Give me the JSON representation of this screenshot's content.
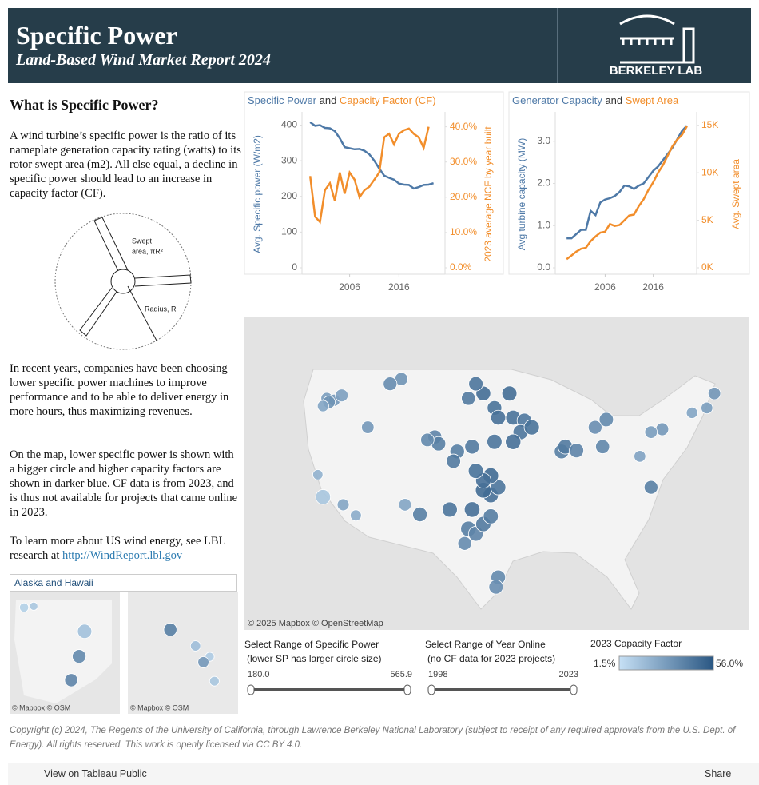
{
  "header": {
    "title": "Specific Power",
    "subtitle": "Land-Based Wind Market Report 2024",
    "logo": "BERKELEY LAB"
  },
  "sidebar": {
    "heading": "What is Specific Power?",
    "paragraphs": [
      "A wind turbine’s specific power is the ratio of its nameplate generation capacity rating (watts) to its rotor swept area (m2). All else equal, a decline in specific power should lead to an increase in capacity factor (CF).",
      "In recent years, companies have been choosing lower specific power machines to improve performance and to be able to deliver energy in more hours, thus maximizing revenues.",
      "On the map, lower specific power is shown with a bigger circle and higher capacity factors are shown in darker blue. CF data is from 2023, and is thus not available for projects that came online in 2023.",
      "To learn more about US wind energy, see LBL research at "
    ],
    "link": "http://WindReport.lbl.gov",
    "diagram": {
      "swept_1": "Swept",
      "swept_2": "area, πR²",
      "radius": "Radius, R"
    }
  },
  "chart_data": [
    {
      "type": "line",
      "title_joiner": "and",
      "y_label": "Avg. Specific power (W/m2)",
      "y2_label": "2023 average NCF by year built",
      "x": [
        1998,
        1999,
        2000,
        2001,
        2002,
        2003,
        2004,
        2005,
        2006,
        2007,
        2008,
        2009,
        2010,
        2011,
        2012,
        2013,
        2014,
        2015,
        2016,
        2017,
        2018,
        2019,
        2020,
        2021,
        2022,
        2023
      ],
      "xlim": [
        1997,
        2025
      ],
      "xticks": [
        2006,
        2016
      ],
      "ylim": [
        0,
        410
      ],
      "yticks": [
        0,
        100,
        200,
        300,
        400
      ],
      "y2lim": [
        0,
        41.5
      ],
      "y2ticks": [
        {
          "value": 0,
          "label": "0.0%"
        },
        {
          "value": 10,
          "label": "10.0%"
        },
        {
          "value": 20,
          "label": "20.0%"
        },
        {
          "value": 30,
          "label": "30.0%"
        },
        {
          "value": 40,
          "label": "40.0%"
        }
      ],
      "series": [
        {
          "name": "Specific Power",
          "color": "#4e79a7",
          "values": [
            408,
            398,
            400,
            392,
            391,
            383,
            363,
            338,
            335,
            332,
            333,
            328,
            318,
            300,
            278,
            258,
            252,
            247,
            236,
            233,
            232,
            222,
            226,
            232,
            233,
            237
          ]
        },
        {
          "name": "Capacity Factor (CF)",
          "color": "#f28e2b",
          "axis": "y2",
          "values": [
            26,
            14.5,
            13,
            22,
            24,
            19,
            27,
            21,
            27,
            25,
            20,
            22,
            23,
            25,
            27,
            37,
            38,
            35,
            38,
            39,
            39.5,
            38,
            37,
            34,
            40,
            null
          ]
        }
      ]
    },
    {
      "type": "line",
      "title_joiner": "and",
      "y_label": "Avg turbine capacity (MW)",
      "y2_label": "Avg. Swept area",
      "x": [
        1998,
        1999,
        2000,
        2001,
        2002,
        2003,
        2004,
        2005,
        2006,
        2007,
        2008,
        2009,
        2010,
        2011,
        2012,
        2013,
        2014,
        2015,
        2016,
        2017,
        2018,
        2019,
        2020,
        2021,
        2022,
        2023
      ],
      "xlim": [
        1996.3,
        2024.7
      ],
      "xticks": [
        2006,
        2016
      ],
      "ylim": [
        0,
        3.47
      ],
      "yticks": [
        {
          "value": 0,
          "label": "0.0"
        },
        {
          "value": 1,
          "label": "1.0"
        },
        {
          "value": 2,
          "label": "2.0"
        },
        {
          "value": 3,
          "label": "3.0"
        }
      ],
      "y2lim": [
        0,
        15400
      ],
      "y2ticks": [
        {
          "value": 0,
          "label": "0K"
        },
        {
          "value": 5000,
          "label": "5K"
        },
        {
          "value": 10000,
          "label": "10K"
        },
        {
          "value": 15000,
          "label": "15K"
        }
      ],
      "series": [
        {
          "name": "Generator Capacity",
          "color": "#4e79a7",
          "values": [
            0.7,
            0.7,
            0.8,
            0.9,
            0.9,
            1.35,
            1.25,
            1.55,
            1.62,
            1.65,
            1.7,
            1.8,
            1.95,
            1.93,
            1.87,
            1.95,
            2.0,
            2.15,
            2.3,
            2.4,
            2.55,
            2.7,
            2.85,
            3.05,
            3.25,
            3.37
          ]
        },
        {
          "name": "Swept Area",
          "color": "#f28e2b",
          "axis": "y2",
          "values": [
            900,
            1300,
            1700,
            2000,
            2100,
            2800,
            3300,
            3700,
            3800,
            4600,
            4400,
            4500,
            5000,
            5500,
            5600,
            6500,
            7200,
            8200,
            9000,
            10000,
            10800,
            11800,
            12800,
            13500,
            14000,
            14900
          ]
        }
      ]
    }
  ],
  "map": {
    "attribution": "© 2025 Mapbox  © OpenStreetMap",
    "points": [
      {
        "lon": -120.5,
        "lat": 46.0,
        "sp": 330,
        "cf": 28
      },
      {
        "lon": -119.5,
        "lat": 45.8,
        "sp": 320,
        "cf": 30
      },
      {
        "lon": -120.2,
        "lat": 45.6,
        "sp": 300,
        "cf": 32
      },
      {
        "lon": -118.5,
        "lat": 46.3,
        "sp": 290,
        "cf": 27
      },
      {
        "lon": -121.0,
        "lat": 45.2,
        "sp": 340,
        "cf": 25
      },
      {
        "lon": -121.7,
        "lat": 38.1,
        "sp": 380,
        "cf": 20
      },
      {
        "lon": -118.3,
        "lat": 35.0,
        "sp": 320,
        "cf": 25
      },
      {
        "lon": -116.6,
        "lat": 33.9,
        "sp": 350,
        "cf": 22
      },
      {
        "lon": -121.0,
        "lat": 35.8,
        "sp": 220,
        "cf": 12
      },
      {
        "lon": -106.0,
        "lat": 42.0,
        "sp": 250,
        "cf": 38
      },
      {
        "lon": -105.5,
        "lat": 41.3,
        "sp": 240,
        "cf": 40
      },
      {
        "lon": -107.0,
        "lat": 41.7,
        "sp": 270,
        "cf": 36
      },
      {
        "lon": -110.5,
        "lat": 48.0,
        "sp": 280,
        "cf": 32
      },
      {
        "lon": -112.0,
        "lat": 47.5,
        "sp": 260,
        "cf": 35
      },
      {
        "lon": -115.0,
        "lat": 43.0,
        "sp": 300,
        "cf": 30
      },
      {
        "lon": -103.0,
        "lat": 40.5,
        "sp": 230,
        "cf": 40
      },
      {
        "lon": -103.5,
        "lat": 39.5,
        "sp": 240,
        "cf": 42
      },
      {
        "lon": -104.0,
        "lat": 34.5,
        "sp": 210,
        "cf": 44
      },
      {
        "lon": -108.0,
        "lat": 34.0,
        "sp": 230,
        "cf": 40
      },
      {
        "lon": -110.0,
        "lat": 35.0,
        "sp": 300,
        "cf": 25
      },
      {
        "lon": -101.5,
        "lat": 32.5,
        "sp": 200,
        "cf": 40
      },
      {
        "lon": -100.5,
        "lat": 32.0,
        "sp": 220,
        "cf": 38
      },
      {
        "lon": -99.5,
        "lat": 33.0,
        "sp": 210,
        "cf": 42
      },
      {
        "lon": -101.0,
        "lat": 34.5,
        "sp": 195,
        "cf": 46
      },
      {
        "lon": -97.5,
        "lat": 27.5,
        "sp": 230,
        "cf": 36
      },
      {
        "lon": -97.8,
        "lat": 26.5,
        "sp": 240,
        "cf": 34
      },
      {
        "lon": -102.0,
        "lat": 31.0,
        "sp": 260,
        "cf": 35
      },
      {
        "lon": -98.5,
        "lat": 33.8,
        "sp": 215,
        "cf": 41
      },
      {
        "lon": -98.5,
        "lat": 36.0,
        "sp": 200,
        "cf": 46
      },
      {
        "lon": -99.5,
        "lat": 36.5,
        "sp": 190,
        "cf": 48
      },
      {
        "lon": -97.5,
        "lat": 36.8,
        "sp": 210,
        "cf": 44
      },
      {
        "lon": -98.5,
        "lat": 38.0,
        "sp": 195,
        "cf": 48
      },
      {
        "lon": -99.5,
        "lat": 37.5,
        "sp": 205,
        "cf": 46
      },
      {
        "lon": -100.5,
        "lat": 38.5,
        "sp": 210,
        "cf": 45
      },
      {
        "lon": -98.0,
        "lat": 41.5,
        "sp": 215,
        "cf": 44
      },
      {
        "lon": -101.0,
        "lat": 41.0,
        "sp": 225,
        "cf": 42
      },
      {
        "lon": -98.0,
        "lat": 45.0,
        "sp": 230,
        "cf": 45
      },
      {
        "lon": -99.5,
        "lat": 46.5,
        "sp": 225,
        "cf": 47
      },
      {
        "lon": -100.5,
        "lat": 47.5,
        "sp": 240,
        "cf": 44
      },
      {
        "lon": -97.5,
        "lat": 44.0,
        "sp": 220,
        "cf": 46
      },
      {
        "lon": -101.5,
        "lat": 46.0,
        "sp": 250,
        "cf": 42
      },
      {
        "lon": -95.5,
        "lat": 44.0,
        "sp": 220,
        "cf": 45
      },
      {
        "lon": -94.0,
        "lat": 43.7,
        "sp": 230,
        "cf": 43
      },
      {
        "lon": -96.0,
        "lat": 46.5,
        "sp": 215,
        "cf": 47
      },
      {
        "lon": -94.5,
        "lat": 42.5,
        "sp": 210,
        "cf": 44
      },
      {
        "lon": -93.0,
        "lat": 43.0,
        "sp": 205,
        "cf": 45
      },
      {
        "lon": -95.5,
        "lat": 41.5,
        "sp": 200,
        "cf": 46
      },
      {
        "lon": -89.0,
        "lat": 40.5,
        "sp": 230,
        "cf": 40
      },
      {
        "lon": -88.5,
        "lat": 41.0,
        "sp": 220,
        "cf": 42
      },
      {
        "lon": -87.0,
        "lat": 40.6,
        "sp": 235,
        "cf": 38
      },
      {
        "lon": -83.0,
        "lat": 43.8,
        "sp": 240,
        "cf": 36
      },
      {
        "lon": -84.5,
        "lat": 43.0,
        "sp": 260,
        "cf": 34
      },
      {
        "lon": -83.5,
        "lat": 41.0,
        "sp": 250,
        "cf": 37
      },
      {
        "lon": -75.5,
        "lat": 42.8,
        "sp": 290,
        "cf": 30
      },
      {
        "lon": -77.0,
        "lat": 42.5,
        "sp": 300,
        "cf": 28
      },
      {
        "lon": -78.5,
        "lat": 40.0,
        "sp": 330,
        "cf": 26
      },
      {
        "lon": -69.5,
        "lat": 45.0,
        "sp": 330,
        "cf": 28
      },
      {
        "lon": -71.5,
        "lat": 44.5,
        "sp": 340,
        "cf": 25
      },
      {
        "lon": -68.5,
        "lat": 46.5,
        "sp": 300,
        "cf": 31
      },
      {
        "lon": -77.0,
        "lat": 36.8,
        "sp": 260,
        "cf": 40
      }
    ]
  },
  "inset": {
    "title": "Alaska and Hawaii",
    "attribution": "© Mapbox  © OSM",
    "alaska_points": [
      {
        "lon": -167.8,
        "lat": 69.4,
        "sp": 420,
        "cf": 8
      },
      {
        "lon": -165.0,
        "lat": 69.6,
        "sp": 450,
        "cf": 12
      },
      {
        "lon": -150.2,
        "lat": 65.5,
        "sp": 240,
        "cf": 14
      },
      {
        "lon": -151.8,
        "lat": 61.4,
        "sp": 260,
        "cf": 36
      },
      {
        "lon": -154.1,
        "lat": 57.5,
        "sp": 280,
        "cf": 38
      }
    ],
    "hawaii_points": [
      {
        "lon": -158.3,
        "lat": 21.6,
        "sp": 280,
        "cf": 40
      },
      {
        "lon": -156.7,
        "lat": 21.0,
        "sp": 380,
        "cf": 15
      },
      {
        "lon": -155.8,
        "lat": 20.6,
        "sp": 420,
        "cf": 10
      },
      {
        "lon": -155.5,
        "lat": 19.7,
        "sp": 400,
        "cf": 12
      },
      {
        "lon": -156.2,
        "lat": 20.4,
        "sp": 350,
        "cf": 30
      }
    ]
  },
  "filters": [
    {
      "title": "Select Range of Specific Power",
      "subtitle": "(lower SP has larger circle size)",
      "min": {
        "value": 180,
        "label": "180.0"
      },
      "max": {
        "value": 565.9,
        "label": "565.9"
      }
    },
    {
      "title": "Select Range of Year Online",
      "subtitle": "(no CF data for 2023 projects)",
      "min": 1998,
      "max": 2023
    }
  ],
  "legend": {
    "title": "2023 Capacity Factor",
    "min": {
      "value": 1.5,
      "label": "1.5%"
    },
    "max": {
      "value": 56,
      "label": "56.0%"
    },
    "colors": [
      "#c6e0f5",
      "#2a5783"
    ]
  },
  "footer": "Copyright (c) 2024, The Regents of the University of California, through Lawrence Berkeley National Laboratory (subject to receipt of any required approvals from the U.S. Dept. of Energy). All rights reserved. This work is openly licensed via CC BY 4.0.",
  "toolbar": {
    "view": "View on Tableau Public",
    "share": "Share"
  }
}
